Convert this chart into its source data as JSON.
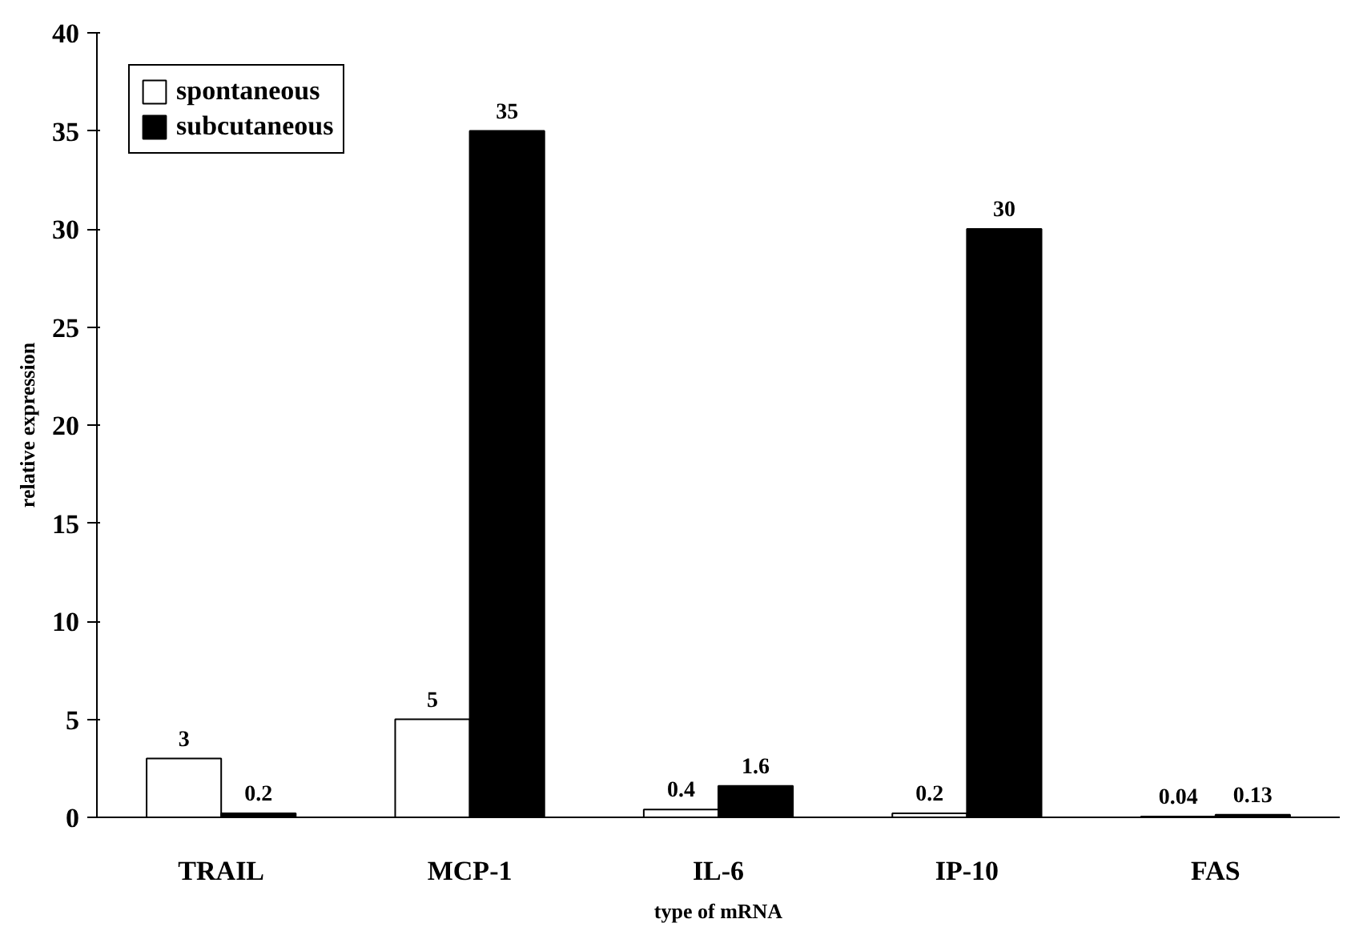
{
  "chart_data": {
    "type": "bar",
    "xlabel": "type of mRNA",
    "ylabel": "relative expression",
    "categories": [
      "TRAIL",
      "MCP-1",
      "IL-6",
      "IP-10",
      "FAS"
    ],
    "series": [
      {
        "name": "spontaneous",
        "color": "#ffffff",
        "values": [
          3,
          5,
          0.4,
          0.2,
          0.04
        ]
      },
      {
        "name": "subcutaneous",
        "color": "#000000",
        "values": [
          0.2,
          35,
          1.6,
          30,
          0.13
        ]
      }
    ],
    "ylim": [
      0,
      40
    ],
    "yticks": [
      0,
      5,
      10,
      15,
      20,
      25,
      30,
      35,
      40
    ],
    "grid": false,
    "legend": "top left",
    "data_labels": true
  }
}
